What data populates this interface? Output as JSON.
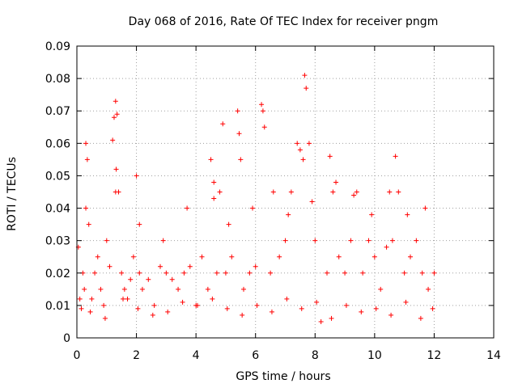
{
  "chart_data": {
    "type": "scatter",
    "title": "Day 068 of 2016, Rate Of TEC Index for receiver pngm",
    "xlabel": "GPS time / hours",
    "ylabel": "ROTI / TECUs",
    "xlim": [
      0,
      14
    ],
    "ylim": [
      0,
      0.09
    ],
    "x_ticks": [
      0,
      2,
      4,
      6,
      8,
      10,
      12,
      14
    ],
    "x_tick_labels": [
      "0",
      "2",
      "4",
      "6",
      "8",
      "10",
      "12",
      "14"
    ],
    "y_ticks": [
      0,
      0.01,
      0.02,
      0.03,
      0.04,
      0.05,
      0.06,
      0.07,
      0.08,
      0.09
    ],
    "y_tick_labels": [
      "0",
      "0.01",
      "0.02",
      "0.03",
      "0.04",
      "0.05",
      "0.06",
      "0.07",
      "0.08",
      "0.09"
    ],
    "grid": true,
    "marker": "plus",
    "color": "#ff0000",
    "series": [
      {
        "name": "ROTI",
        "x": [
          0.05,
          0.1,
          0.15,
          0.2,
          0.25,
          0.3,
          0.35,
          0.4,
          0.5,
          0.6,
          0.7,
          0.8,
          0.9,
          1.0,
          1.1,
          1.2,
          1.25,
          1.3,
          1.35,
          1.4,
          1.5,
          1.6,
          1.7,
          1.8,
          1.9,
          2.0,
          2.1,
          2.2,
          2.4,
          2.6,
          2.8,
          3.0,
          3.2,
          3.4,
          3.6,
          3.8,
          4.0,
          4.2,
          4.4,
          4.5,
          4.6,
          4.7,
          4.8,
          4.9,
          5.0,
          5.2,
          5.4,
          5.45,
          5.5,
          5.6,
          5.8,
          6.0,
          6.2,
          6.25,
          6.3,
          6.5,
          6.8,
          7.0,
          7.2,
          7.4,
          7.5,
          7.6,
          7.65,
          7.7,
          7.8,
          8.0,
          8.2,
          8.4,
          8.5,
          8.6,
          8.8,
          9.0,
          9.2,
          9.4,
          9.6,
          9.8,
          10.0,
          10.2,
          10.4,
          10.6,
          10.7,
          10.8,
          11.0,
          11.2,
          11.4,
          11.6,
          11.8,
          12.0,
          0.3,
          1.3,
          1.32,
          2.1,
          2.9,
          3.7,
          4.6,
          5.1,
          5.9,
          6.6,
          7.1,
          7.9,
          8.7,
          9.3,
          9.9,
          10.5,
          11.1,
          11.7,
          0.45,
          0.95,
          1.55,
          2.05,
          2.55,
          3.05,
          3.55,
          4.05,
          4.55,
          5.05,
          5.55,
          6.05,
          6.55,
          7.05,
          7.55,
          8.05,
          8.55,
          9.05,
          9.55,
          10.05,
          10.55,
          11.05,
          11.55,
          11.95
        ],
        "y": [
          0.028,
          0.012,
          0.009,
          0.02,
          0.015,
          0.06,
          0.055,
          0.035,
          0.012,
          0.02,
          0.025,
          0.015,
          0.01,
          0.03,
          0.022,
          0.061,
          0.068,
          0.073,
          0.069,
          0.045,
          0.02,
          0.015,
          0.012,
          0.018,
          0.025,
          0.05,
          0.02,
          0.015,
          0.018,
          0.01,
          0.022,
          0.02,
          0.018,
          0.015,
          0.02,
          0.022,
          0.01,
          0.025,
          0.015,
          0.055,
          0.048,
          0.02,
          0.045,
          0.066,
          0.02,
          0.025,
          0.07,
          0.063,
          0.055,
          0.015,
          0.02,
          0.022,
          0.072,
          0.07,
          0.065,
          0.02,
          0.025,
          0.03,
          0.045,
          0.06,
          0.058,
          0.055,
          0.081,
          0.077,
          0.06,
          0.03,
          0.005,
          0.02,
          0.056,
          0.045,
          0.025,
          0.02,
          0.03,
          0.045,
          0.02,
          0.03,
          0.025,
          0.015,
          0.028,
          0.03,
          0.056,
          0.045,
          0.02,
          0.025,
          0.03,
          0.02,
          0.015,
          0.02,
          0.04,
          0.045,
          0.052,
          0.035,
          0.03,
          0.04,
          0.043,
          0.035,
          0.04,
          0.045,
          0.038,
          0.042,
          0.048,
          0.044,
          0.038,
          0.045,
          0.038,
          0.04,
          0.008,
          0.006,
          0.012,
          0.009,
          0.007,
          0.008,
          0.011,
          0.01,
          0.012,
          0.009,
          0.007,
          0.01,
          0.008,
          0.012,
          0.009,
          0.011,
          0.006,
          0.01,
          0.008,
          0.009,
          0.007,
          0.011,
          0.006,
          0.009
        ]
      }
    ]
  }
}
